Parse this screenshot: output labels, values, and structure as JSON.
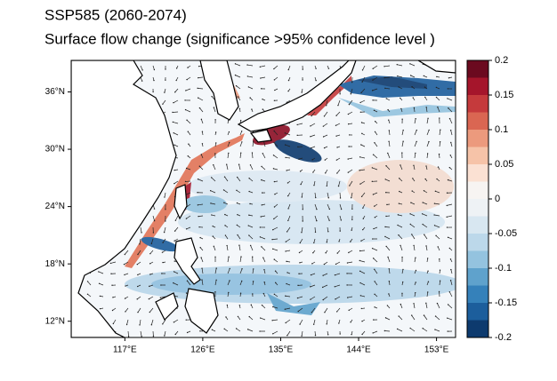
{
  "chart_data": {
    "type": "map",
    "title": "SSP585 (2060-2074)",
    "subtitle": "Surface flow change (significance >95% confidence level )",
    "xlim": [
      110.8,
      155.2
    ],
    "ylim": [
      10.3,
      39.3
    ],
    "xticks": [
      {
        "value": 117,
        "label": "117°E"
      },
      {
        "value": 126,
        "label": "126°E"
      },
      {
        "value": 135,
        "label": "135°E"
      },
      {
        "value": 144,
        "label": "144°E"
      },
      {
        "value": 153,
        "label": "153°E"
      }
    ],
    "yticks": [
      {
        "value": 12,
        "label": "12°N"
      },
      {
        "value": 18,
        "label": "18°N"
      },
      {
        "value": 24,
        "label": "24°N"
      },
      {
        "value": 30,
        "label": "30°N"
      },
      {
        "value": 36,
        "label": "36°N"
      }
    ],
    "colorbar": {
      "lim": [
        -0.2,
        0.2
      ],
      "ticks": [
        0.2,
        0.15,
        0.1,
        0.05,
        0,
        -0.05,
        -0.1,
        -0.15,
        -0.2
      ],
      "colors": [
        "#6b0a1f",
        "#a5152b",
        "#c53a3c",
        "#da6652",
        "#ec9a7d",
        "#f6c3a8",
        "#fbe1d3",
        "#f7f4f2",
        "#eef2f5",
        "#d8e7f1",
        "#bcd8ea",
        "#94c3df",
        "#5fa2cc",
        "#3581ba",
        "#1c5e9c",
        "#0d3a6e"
      ]
    }
  }
}
